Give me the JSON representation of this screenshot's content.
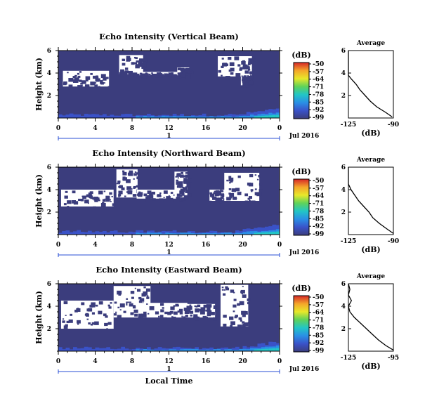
{
  "chart_data": [
    {
      "type": "heatmap",
      "title": "Echo Intensity (Vertical Beam)",
      "ylabel": "Height (km)",
      "yticks": [
        "6",
        "4",
        "2"
      ],
      "ylim": [
        0,
        6
      ],
      "xticks": [
        "0",
        "4",
        "8",
        "12",
        "16",
        "20",
        "0"
      ],
      "xlim": [
        0,
        24
      ],
      "day_label": "1",
      "date_label": "Jul 2016",
      "colorbar": {
        "unit": "(dB)",
        "levels": [
          "-50",
          "-57",
          "-64",
          "-71",
          "-78",
          "-85",
          "-92",
          "-99"
        ],
        "colors": [
          "#d62728",
          "#f4a62a",
          "#e8e82a",
          "#5fd25a",
          "#22c6c6",
          "#2a8fe6",
          "#3a52c8",
          "#3b3d7d"
        ]
      },
      "background_color": "#3b3d7d",
      "missing_regions": [
        {
          "x": [
            0.5,
            5.5
          ],
          "y": [
            2.8,
            4.2
          ]
        },
        {
          "x": [
            6.6,
            9.2
          ],
          "y": [
            3.9,
            5.6
          ]
        },
        {
          "x": [
            8.8,
            13.3
          ],
          "y": [
            3.8,
            4.1
          ]
        },
        {
          "x": [
            12.9,
            14.2
          ],
          "y": [
            3.8,
            4.5
          ]
        },
        {
          "x": [
            17.3,
            21.0
          ],
          "y": [
            3.7,
            5.5
          ]
        },
        {
          "x": [
            19.8,
            20.8
          ],
          "y": [
            2.9,
            3.9
          ]
        }
      ],
      "average_profile": {
        "title": "Average",
        "xlabel": "(dB)",
        "xticks": [
          "-125",
          "-90"
        ],
        "xlim": [
          -125,
          -90
        ],
        "yticks": [
          "6",
          "4",
          "2"
        ],
        "ylim": [
          0,
          6
        ],
        "height_km": [
          0.1,
          0.5,
          1.0,
          1.5,
          2.0,
          2.5,
          3.0,
          3.5,
          3.8,
          4.5,
          5.0,
          5.5,
          6.0
        ],
        "db": [
          -91,
          -96,
          -103,
          -108,
          -112,
          -116,
          -119,
          -123,
          -125,
          -125,
          -125,
          -125,
          -125
        ]
      }
    },
    {
      "type": "heatmap",
      "title": "Echo Intensity (Northward Beam)",
      "ylabel": "Height (km)",
      "yticks": [
        "6",
        "4",
        "2"
      ],
      "ylim": [
        0,
        6
      ],
      "xticks": [
        "0",
        "4",
        "8",
        "12",
        "16",
        "20",
        "0"
      ],
      "xlim": [
        0,
        24
      ],
      "day_label": "1",
      "date_label": "Jul 2016",
      "colorbar": {
        "unit": "(dB)",
        "levels": [
          "-50",
          "-57",
          "-64",
          "-71",
          "-78",
          "-85",
          "-92",
          "-99"
        ],
        "colors": [
          "#d62728",
          "#f4a62a",
          "#e8e82a",
          "#5fd25a",
          "#22c6c6",
          "#2a8fe6",
          "#3a52c8",
          "#3b3d7d"
        ]
      },
      "background_color": "#3b3d7d",
      "missing_regions": [
        {
          "x": [
            0.3,
            6.0
          ],
          "y": [
            2.5,
            4.0
          ]
        },
        {
          "x": [
            6.3,
            8.6
          ],
          "y": [
            3.3,
            5.8
          ]
        },
        {
          "x": [
            8.5,
            13.8
          ],
          "y": [
            3.2,
            4.0
          ]
        },
        {
          "x": [
            12.6,
            14.0
          ],
          "y": [
            3.3,
            5.6
          ]
        },
        {
          "x": [
            16.4,
            18.6
          ],
          "y": [
            3.0,
            4.0
          ]
        },
        {
          "x": [
            18.0,
            21.8
          ],
          "y": [
            3.0,
            5.5
          ]
        }
      ],
      "average_profile": {
        "title": "Average",
        "xlabel": "(dB)",
        "xticks": [
          "-125",
          "-90"
        ],
        "xlim": [
          -125,
          -90
        ],
        "yticks": [
          "6",
          "4",
          "2"
        ],
        "ylim": [
          0,
          6
        ],
        "height_km": [
          0.1,
          0.5,
          1.0,
          1.5,
          2.0,
          2.5,
          3.0,
          3.5,
          4.0,
          4.5,
          5.0,
          5.5,
          6.0
        ],
        "db": [
          -90,
          -95,
          -101,
          -106,
          -109,
          -113,
          -117,
          -120,
          -123,
          -125,
          -125,
          -125,
          -125
        ]
      }
    },
    {
      "type": "heatmap",
      "title": "Echo Intensity (Eastward Beam)",
      "ylabel": "Height (km)",
      "yticks": [
        "6",
        "4",
        "2"
      ],
      "ylim": [
        0,
        6
      ],
      "xticks": [
        "0",
        "4",
        "8",
        "12",
        "16",
        "20",
        "0"
      ],
      "xlim": [
        0,
        24
      ],
      "xlabel": "Local Time",
      "day_label": "1",
      "date_label": "Jul 2016",
      "colorbar": {
        "unit": "(dB)",
        "levels": [
          "-50",
          "-57",
          "-64",
          "-71",
          "-78",
          "-85",
          "-92",
          "-99"
        ],
        "colors": [
          "#d62728",
          "#f4a62a",
          "#e8e82a",
          "#5fd25a",
          "#22c6c6",
          "#2a8fe6",
          "#3a52c8",
          "#3b3d7d"
        ]
      },
      "background_color": "#3b3d7d",
      "missing_regions": [
        {
          "x": [
            0.3,
            6.0
          ],
          "y": [
            2.0,
            4.5
          ]
        },
        {
          "x": [
            6.0,
            10.0
          ],
          "y": [
            3.0,
            5.8
          ]
        },
        {
          "x": [
            7.5,
            14.0
          ],
          "y": [
            3.0,
            4.3
          ]
        },
        {
          "x": [
            13.5,
            17.0
          ],
          "y": [
            3.0,
            4.2
          ]
        },
        {
          "x": [
            17.6,
            20.6
          ],
          "y": [
            2.2,
            5.9
          ]
        }
      ],
      "average_profile": {
        "title": "Average",
        "xlabel": "(dB)",
        "xticks": [
          "-125",
          "-95"
        ],
        "xlim": [
          -125,
          -95
        ],
        "yticks": [
          "6",
          "4",
          "2"
        ],
        "ylim": [
          0,
          6
        ],
        "height_km": [
          0.1,
          0.5,
          1.0,
          1.5,
          2.0,
          2.5,
          3.0,
          3.5,
          4.0,
          4.5,
          5.0,
          5.5,
          6.0
        ],
        "db": [
          -95,
          -100,
          -105,
          -109,
          -113,
          -117,
          -121,
          -124,
          -125,
          -123,
          -125,
          -124,
          -125
        ]
      }
    }
  ]
}
